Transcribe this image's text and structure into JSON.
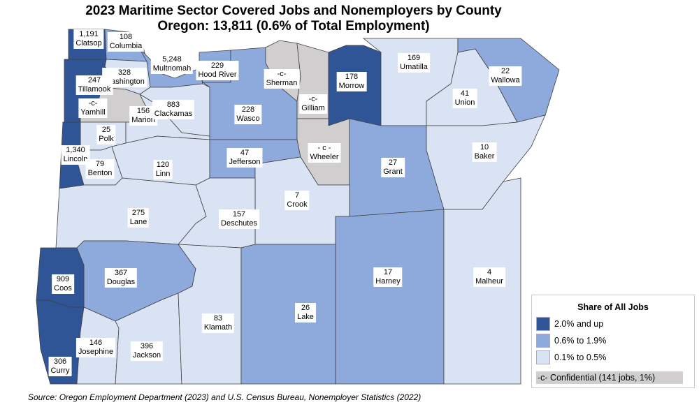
{
  "title": "2023 Maritime Sector Covered Jobs and Nonemployers by County",
  "subtitle": "Oregon: 13,811 (0.6% of Total Employment)",
  "colors": {
    "high": "#2F5597",
    "mid": "#8EA9DB",
    "low": "#DAE3F3",
    "confidential": "#D0CECE"
  },
  "counties": [
    {
      "name": "Clatsop",
      "value": "1,191",
      "category": "high"
    },
    {
      "name": "Columbia",
      "value": "108",
      "category": "mid"
    },
    {
      "name": "Multnomah",
      "value": "5,248",
      "category": "mid"
    },
    {
      "name": "Washington",
      "value": "328",
      "category": "low"
    },
    {
      "name": "Tillamook",
      "value": "247",
      "category": "high"
    },
    {
      "name": "Yamhill",
      "value": "-c-",
      "category": "confidential"
    },
    {
      "name": "Polk",
      "value": "25",
      "category": "low"
    },
    {
      "name": "Lincoln",
      "value": "1,340",
      "category": "high"
    },
    {
      "name": "Benton",
      "value": "79",
      "category": "low"
    },
    {
      "name": "Marion",
      "value": "156",
      "category": "low"
    },
    {
      "name": "Clackamas",
      "value": "883",
      "category": "low"
    },
    {
      "name": "Linn",
      "value": "120",
      "category": "low"
    },
    {
      "name": "Hood River",
      "value": "229",
      "category": "mid"
    },
    {
      "name": "Wasco",
      "value": "228",
      "category": "mid"
    },
    {
      "name": "Sherman",
      "value": "-c-",
      "category": "confidential"
    },
    {
      "name": "Gilliam",
      "value": "-c-",
      "category": "confidential"
    },
    {
      "name": "Morrow",
      "value": "178",
      "category": "high"
    },
    {
      "name": "Umatilla",
      "value": "169",
      "category": "low"
    },
    {
      "name": "Union",
      "value": "41",
      "category": "low"
    },
    {
      "name": "Wallowa",
      "value": "22",
      "category": "mid"
    },
    {
      "name": "Jefferson",
      "value": "47",
      "category": "mid"
    },
    {
      "name": "Wheeler",
      "value": "- c -",
      "category": "confidential"
    },
    {
      "name": "Grant",
      "value": "27",
      "category": "mid"
    },
    {
      "name": "Baker",
      "value": "10",
      "category": "low"
    },
    {
      "name": "Crook",
      "value": "7",
      "category": "low"
    },
    {
      "name": "Deschutes",
      "value": "157",
      "category": "low"
    },
    {
      "name": "Lane",
      "value": "275",
      "category": "low"
    },
    {
      "name": "Douglas",
      "value": "367",
      "category": "mid"
    },
    {
      "name": "Coos",
      "value": "909",
      "category": "high"
    },
    {
      "name": "Curry",
      "value": "306",
      "category": "high"
    },
    {
      "name": "Josephine",
      "value": "146",
      "category": "low"
    },
    {
      "name": "Jackson",
      "value": "396",
      "category": "low"
    },
    {
      "name": "Klamath",
      "value": "83",
      "category": "low"
    },
    {
      "name": "Lake",
      "value": "26",
      "category": "mid"
    },
    {
      "name": "Harney",
      "value": "17",
      "category": "mid"
    },
    {
      "name": "Malheur",
      "value": "4",
      "category": "low"
    }
  ],
  "legend": {
    "title": "Share of All Jobs",
    "items": [
      {
        "label": "2.0% and up",
        "category": "high"
      },
      {
        "label": "0.6% to 1.9%",
        "category": "mid"
      },
      {
        "label": "0.1% to 0.5%",
        "category": "low"
      }
    ],
    "confidential": "-c- Confidential (141 jobs, 1%)"
  },
  "source": "Source: Oregon Employment Department (2023) and U.S. Census Bureau, Nonemployer Statistics (2022)"
}
